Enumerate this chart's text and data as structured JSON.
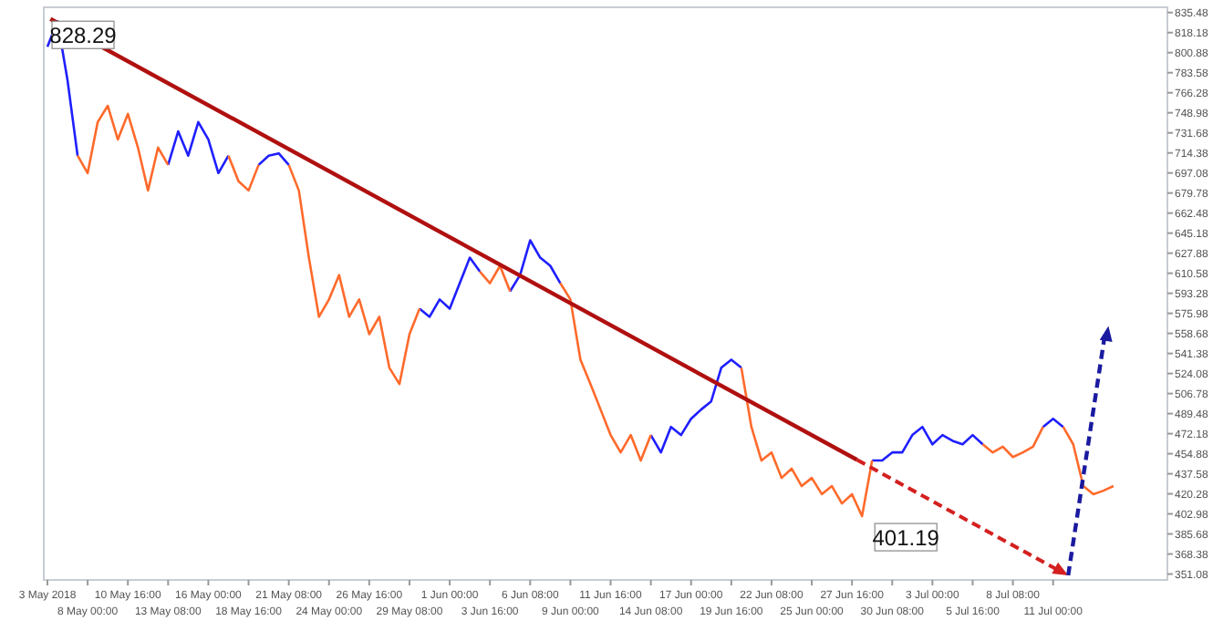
{
  "chart_data": {
    "type": "line",
    "categories": [
      "3 May 2018",
      null,
      null,
      null,
      "8 May 00:00",
      null,
      null,
      null,
      "10 May 16:00",
      null,
      null,
      null,
      "13 May 08:00",
      null,
      null,
      null,
      "16 May 00:00",
      null,
      null,
      null,
      "18 May 16:00",
      null,
      null,
      null,
      "21 May 08:00",
      null,
      null,
      null,
      "24 May 00:00",
      null,
      null,
      null,
      "26 May 16:00",
      null,
      null,
      null,
      "29 May 08:00",
      null,
      null,
      null,
      "1 Jun 00:00",
      null,
      null,
      null,
      "3 Jun 16:00",
      null,
      null,
      null,
      "6 Jun 08:00",
      null,
      null,
      null,
      "9 Jun 00:00",
      null,
      null,
      null,
      "11 Jun 16:00",
      null,
      null,
      null,
      "14 Jun 08:00",
      null,
      null,
      null,
      "17 Jun 00:00",
      null,
      null,
      null,
      "19 Jun 16:00",
      null,
      null,
      null,
      "22 Jun 08:00",
      null,
      null,
      null,
      "25 Jun 00:00",
      null,
      null,
      null,
      "27 Jun 16:00",
      null,
      null,
      null,
      "30 Jun 08:00",
      null,
      null,
      null,
      "3 Jul 00:00",
      null,
      null,
      null,
      "5 Jul 16:00",
      null,
      null,
      null,
      "8 Jul 08:00",
      null,
      null,
      null,
      "11 Jul 00:00",
      null,
      null,
      null,
      null,
      null,
      null,
      null,
      null,
      null,
      null,
      null
    ],
    "series": [
      {
        "color": "#1f1fff",
        "values": [
          806,
          828,
          777,
          712,
          null,
          null,
          null,
          null,
          null,
          null,
          null,
          null,
          704,
          733,
          712,
          741,
          726,
          697,
          712,
          null,
          null,
          704,
          712,
          714,
          704,
          null,
          null,
          null,
          null,
          null,
          null,
          null,
          null,
          null,
          null,
          null,
          null,
          580,
          573,
          588,
          580,
          602,
          624,
          612,
          null,
          null,
          595,
          609,
          639,
          624,
          617,
          602,
          null,
          null,
          null,
          null,
          null,
          null,
          null,
          null,
          471,
          456,
          478,
          471,
          485,
          493,
          500,
          529,
          536,
          529,
          null,
          null,
          null,
          null,
          null,
          null,
          null,
          null,
          null,
          null,
          null,
          null,
          449,
          449,
          456,
          456,
          471,
          478,
          463,
          471,
          466,
          463,
          471,
          463,
          null,
          null,
          null,
          null,
          null,
          478,
          485,
          478,
          null,
          null,
          null,
          null,
          null,
          null,
          null,
          null,
          null,
          null
        ]
      },
      {
        "color": "#ff6a2b",
        "values": [
          null,
          null,
          null,
          712,
          697,
          741,
          755,
          726,
          748,
          719,
          682,
          719,
          704,
          null,
          null,
          null,
          null,
          null,
          712,
          690,
          682,
          704,
          null,
          null,
          704,
          682,
          624,
          573,
          588,
          609,
          573,
          588,
          558,
          573,
          529,
          515,
          558,
          580,
          null,
          null,
          null,
          null,
          null,
          612,
          602,
          617,
          595,
          null,
          null,
          null,
          null,
          602,
          588,
          536,
          515,
          493,
          471,
          456,
          471,
          449,
          471,
          null,
          null,
          null,
          null,
          null,
          null,
          null,
          null,
          529,
          478,
          449,
          456,
          434,
          442,
          427,
          434,
          420,
          427,
          412,
          420,
          401,
          449,
          null,
          null,
          null,
          null,
          null,
          null,
          null,
          null,
          null,
          null,
          463,
          456,
          461,
          452,
          456,
          461,
          478,
          null,
          478,
          463,
          427,
          420,
          423,
          427,
          null,
          null,
          null,
          null,
          null
        ]
      }
    ],
    "ylim": [
      346,
      840
    ],
    "yticks": [
      835.48,
      818.18,
      800.88,
      783.58,
      766.28,
      748.98,
      731.68,
      714.38,
      697.08,
      679.78,
      662.48,
      645.18,
      627.88,
      610.58,
      593.28,
      575.98,
      558.68,
      541.38,
      524.08,
      506.78,
      489.48,
      472.18,
      454.88,
      437.58,
      420.28,
      402.98,
      385.68,
      368.38,
      351.08
    ],
    "annotations": [
      "828.29",
      "401.19"
    ],
    "grid": false
  }
}
